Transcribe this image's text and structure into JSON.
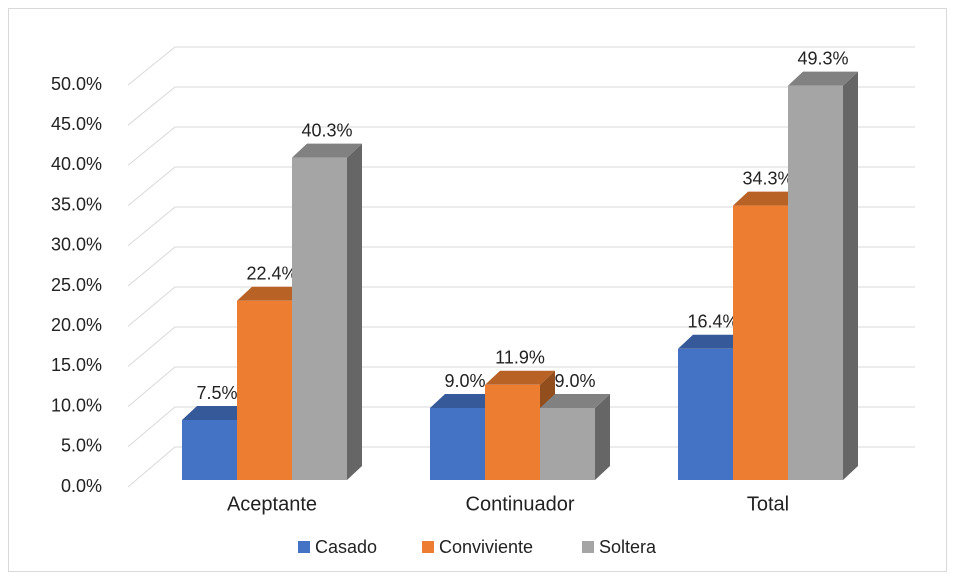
{
  "chart_data": {
    "type": "bar3d",
    "categories": [
      "Aceptante",
      "Continuador",
      "Total"
    ],
    "series": [
      {
        "name": "Casado",
        "color": "#4472c4",
        "values": [
          7.5,
          9.0,
          16.4
        ],
        "value_labels": [
          "7.5%",
          "9.0%",
          "16.4%"
        ]
      },
      {
        "name": "Conviviente",
        "color": "#ed7d31",
        "values": [
          22.4,
          11.9,
          34.3
        ],
        "value_labels": [
          "22.4%",
          "11.9%",
          "34.3%"
        ]
      },
      {
        "name": "Soltera",
        "color": "#a5a5a5",
        "values": [
          40.3,
          9.0,
          49.3
        ],
        "value_labels": [
          "40.3%",
          "9.0%",
          "49.3%"
        ]
      }
    ],
    "ylim": [
      0,
      50
    ],
    "yticks": [
      {
        "value": 0,
        "label": "0.0%"
      },
      {
        "value": 5,
        "label": "5.0%"
      },
      {
        "value": 10,
        "label": "10.0%"
      },
      {
        "value": 15,
        "label": "15.0%"
      },
      {
        "value": 20,
        "label": "20.0%"
      },
      {
        "value": 25,
        "label": "25.0%"
      },
      {
        "value": 30,
        "label": "30.0%"
      },
      {
        "value": 35,
        "label": "35.0%"
      },
      {
        "value": 40,
        "label": "40.0%"
      },
      {
        "value": 45,
        "label": "45.0%"
      },
      {
        "value": 50,
        "label": "50.0%"
      }
    ],
    "grid": true,
    "legend": "bottom"
  }
}
